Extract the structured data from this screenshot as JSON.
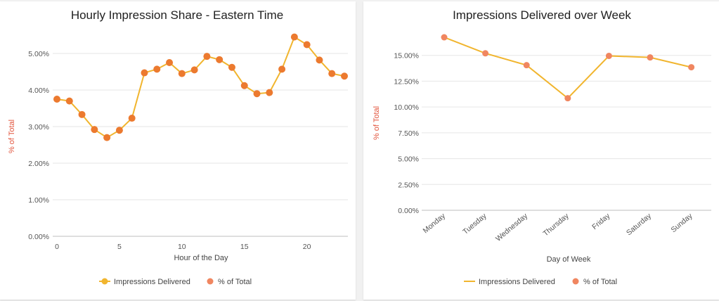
{
  "colors": {
    "line": "#f1b52e",
    "point_left": "#ec7a2f",
    "point_right": "#f08660",
    "legend_dot_right": "#f08660",
    "ylabel": "#e2543c"
  },
  "chart_data": [
    {
      "type": "line",
      "title": "Hourly Impression Share - Eastern Time",
      "xlabel": "Hour of the Day",
      "ylabel": "% of Total",
      "x": [
        0,
        1,
        2,
        3,
        4,
        5,
        6,
        7,
        8,
        9,
        10,
        11,
        12,
        13,
        14,
        15,
        16,
        17,
        18,
        19,
        20,
        21,
        22,
        23
      ],
      "x_ticks": [
        "0",
        "5",
        "10",
        "15",
        "20"
      ],
      "x_tick_values": [
        0,
        5,
        10,
        15,
        20
      ],
      "xlim": [
        0,
        23
      ],
      "ylim": [
        0,
        5.5
      ],
      "y_ticks": [
        "0.00%",
        "1.00%",
        "2.00%",
        "3.00%",
        "4.00%",
        "5.00%"
      ],
      "y_tick_values": [
        0,
        1,
        2,
        3,
        4,
        5
      ],
      "series": [
        {
          "name": "Impressions Delivered",
          "values": [
            3.75,
            3.7,
            3.33,
            2.92,
            2.7,
            2.9,
            3.23,
            4.47,
            4.57,
            4.75,
            4.45,
            4.55,
            4.92,
            4.83,
            4.62,
            4.12,
            3.9,
            3.93,
            4.57,
            5.45,
            5.24,
            4.82,
            4.45,
            4.38
          ]
        }
      ],
      "legend": [
        "Impressions Delivered",
        "% of Total"
      ],
      "legend_position": "bottom",
      "grid": true
    },
    {
      "type": "line",
      "title": "Impressions Delivered over Week",
      "xlabel": "Day of Week",
      "ylabel": "% of Total",
      "categories": [
        "Monday",
        "Tuesday",
        "Wednesday",
        "Thursday",
        "Friday",
        "Saturday",
        "Sunday"
      ],
      "ylim": [
        0,
        17.5
      ],
      "y_ticks": [
        "0.00%",
        "2.50%",
        "5.00%",
        "7.50%",
        "10.00%",
        "12.50%",
        "15.00%"
      ],
      "y_tick_values": [
        0,
        2.5,
        5,
        7.5,
        10,
        12.5,
        15
      ],
      "series": [
        {
          "name": "Impressions Delivered",
          "values": [
            16.75,
            15.2,
            14.05,
            10.85,
            14.95,
            14.8,
            13.85
          ]
        }
      ],
      "legend": [
        "Impressions Delivered",
        "% of Total"
      ],
      "legend_position": "bottom",
      "grid": true
    }
  ]
}
